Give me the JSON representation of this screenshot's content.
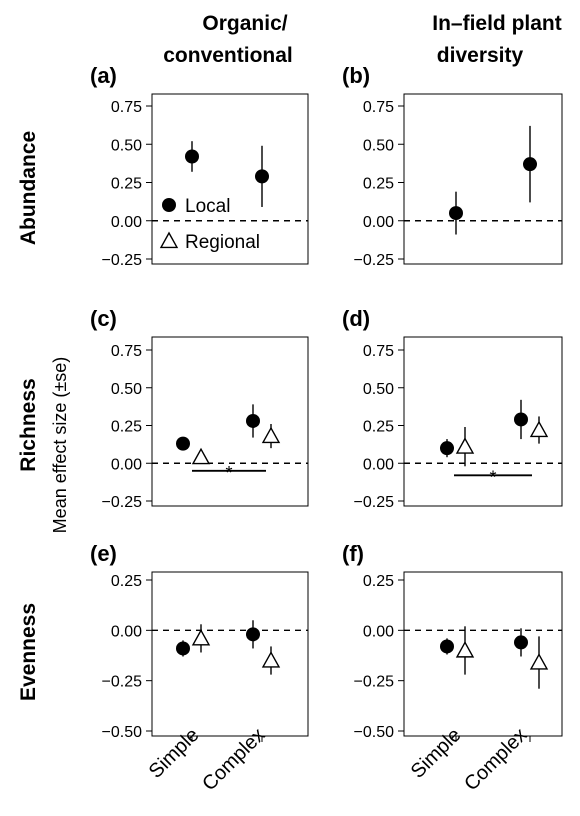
{
  "figure": {
    "column_titles": [
      {
        "line1": "Organic/",
        "line2": "conventional"
      },
      {
        "line1": "In–field plant",
        "line2": "diversity"
      }
    ],
    "row_labels": [
      "Abundance",
      "Richness",
      "Evenness"
    ],
    "y_axis_title": "Mean effect size (±se)",
    "x_tick_labels": [
      "Simple",
      "Complex"
    ],
    "legend": [
      {
        "label": "Local",
        "marker": "filled-circle"
      },
      {
        "label": "Regional",
        "marker": "open-triangle"
      }
    ],
    "colors": {
      "marker": "#000000",
      "background": "#ffffff"
    }
  },
  "chart_data": [
    {
      "type": "scatter",
      "label": "(a)",
      "row": "Abundance",
      "column": "Organic/conventional",
      "categories": [
        "Simple",
        "Complex"
      ],
      "yticks": [
        "0.75",
        "0.50",
        "0.25",
        "0.00",
        "−0.25"
      ],
      "ylim": [
        -0.25,
        0.75
      ],
      "reference_line": 0,
      "series": [
        {
          "name": "Local",
          "values": [
            0.42,
            0.29
          ],
          "se": [
            0.1,
            0.2
          ]
        }
      ],
      "significance": []
    },
    {
      "type": "scatter",
      "label": "(b)",
      "row": "Abundance",
      "column": "In–field plant diversity",
      "categories": [
        "Simple",
        "Complex"
      ],
      "yticks": [
        "0.75",
        "0.50",
        "0.25",
        "0.00",
        "−0.25"
      ],
      "ylim": [
        -0.25,
        0.75
      ],
      "reference_line": 0,
      "series": [
        {
          "name": "Local",
          "values": [
            0.05,
            0.37
          ],
          "se": [
            0.14,
            0.25
          ]
        }
      ],
      "significance": []
    },
    {
      "type": "scatter",
      "label": "(c)",
      "row": "Richness",
      "column": "Organic/conventional",
      "categories": [
        "Simple",
        "Complex"
      ],
      "yticks": [
        "0.75",
        "0.50",
        "0.25",
        "0.00",
        "−0.25"
      ],
      "ylim": [
        -0.25,
        0.75
      ],
      "reference_line": 0,
      "series": [
        {
          "name": "Local",
          "values": [
            0.13,
            0.28
          ],
          "se": [
            0.04,
            0.11
          ]
        },
        {
          "name": "Regional",
          "values": [
            0.04,
            0.18
          ],
          "se": [
            0.02,
            0.08
          ]
        }
      ],
      "significance": [
        {
          "label": "*",
          "y": -0.05
        }
      ]
    },
    {
      "type": "scatter",
      "label": "(d)",
      "row": "Richness",
      "column": "In–field plant diversity",
      "categories": [
        "Simple",
        "Complex"
      ],
      "yticks": [
        "0.75",
        "0.50",
        "0.25",
        "0.00",
        "−0.25"
      ],
      "ylim": [
        -0.25,
        0.75
      ],
      "reference_line": 0,
      "series": [
        {
          "name": "Local",
          "values": [
            0.1,
            0.29
          ],
          "se": [
            0.06,
            0.13
          ]
        },
        {
          "name": "Regional",
          "values": [
            0.11,
            0.22
          ],
          "se": [
            0.13,
            0.09
          ]
        }
      ],
      "significance": [
        {
          "label": "*",
          "y": -0.08
        }
      ]
    },
    {
      "type": "scatter",
      "label": "(e)",
      "row": "Evenness",
      "column": "Organic/conventional",
      "categories": [
        "Simple",
        "Complex"
      ],
      "yticks": [
        "0.25",
        "0.00",
        "−0.25",
        "−0.50"
      ],
      "ylim": [
        -0.5,
        0.25
      ],
      "reference_line": 0,
      "series": [
        {
          "name": "Local",
          "values": [
            -0.09,
            -0.02
          ],
          "se": [
            0.04,
            0.07
          ]
        },
        {
          "name": "Regional",
          "values": [
            -0.04,
            -0.15
          ],
          "se": [
            0.07,
            0.07
          ]
        }
      ],
      "significance": []
    },
    {
      "type": "scatter",
      "label": "(f)",
      "row": "Evenness",
      "column": "In–field plant diversity",
      "categories": [
        "Simple",
        "Complex"
      ],
      "yticks": [
        "0.25",
        "0.00",
        "−0.25",
        "−0.50"
      ],
      "ylim": [
        -0.5,
        0.25
      ],
      "reference_line": 0,
      "series": [
        {
          "name": "Local",
          "values": [
            -0.08,
            -0.06
          ],
          "se": [
            0.04,
            0.07
          ]
        },
        {
          "name": "Regional",
          "values": [
            -0.1,
            -0.16
          ],
          "se": [
            0.12,
            0.13
          ]
        }
      ],
      "significance": []
    }
  ]
}
